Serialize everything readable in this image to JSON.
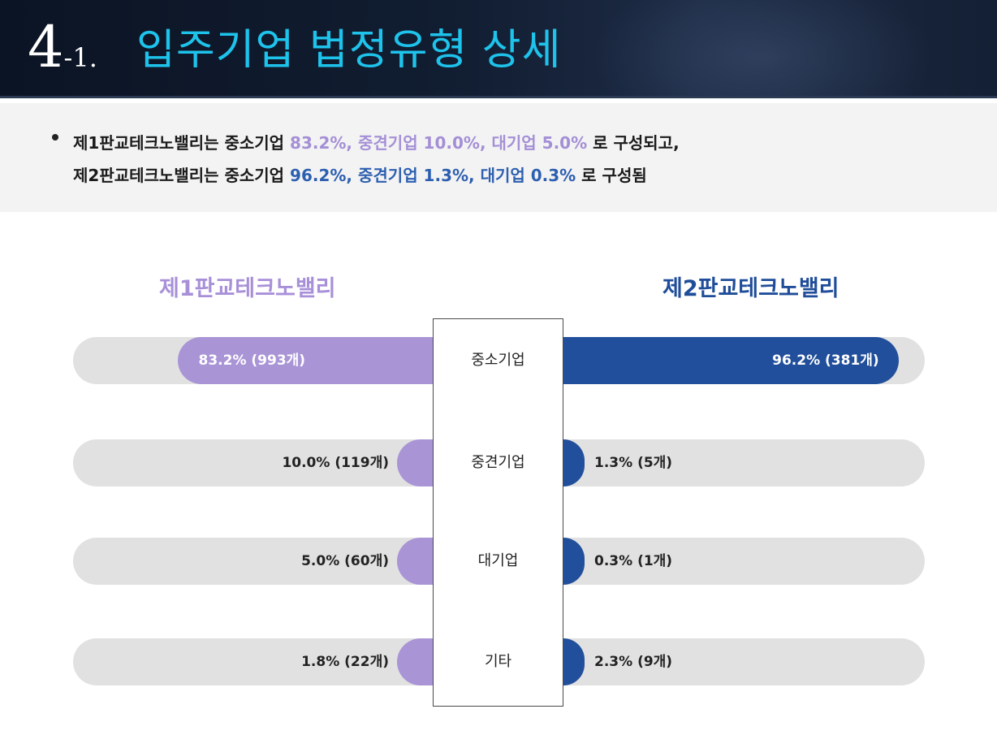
{
  "header": {
    "number": "4",
    "sub_number": "-1.",
    "title": "입주기업 법정유형 상세"
  },
  "summary": {
    "line1": {
      "prefix": "제1판교테크노밸리는 중소기업 ",
      "highlight": "83.2%, 중견기업 10.0%, 대기업 5.0%",
      "suffix": " 로 구성되고,"
    },
    "line2": {
      "prefix": "제2판교테크노밸리는 중소기업 ",
      "highlight": "96.2%, 중견기업 1.3%, 대기업 0.3%",
      "suffix": " 로 구성됨"
    }
  },
  "colors": {
    "left_series": "#a994d6",
    "right_series": "#214f9b",
    "track": "#e1e1e1",
    "title_accent": "#1ec3ec"
  },
  "chart_data": {
    "type": "bar",
    "orientation": "horizontal-diverging",
    "categories": [
      "중소기업",
      "중견기업",
      "대기업",
      "기타"
    ],
    "series": [
      {
        "name": "제1판교테크노밸리",
        "values": [
          83.2,
          10.0,
          5.0,
          1.8
        ],
        "labels": [
          "83.2% (993개)",
          "10.0% (119개)",
          "5.0% (60개)",
          "1.8% (22개)"
        ]
      },
      {
        "name": "제2판교테크노밸리",
        "values": [
          96.2,
          1.3,
          0.3,
          2.3
        ],
        "labels": [
          "96.2% (381개)",
          "1.3% (5개)",
          "0.3% (1개)",
          "2.3% (9개)"
        ]
      }
    ],
    "xlim": [
      0,
      100
    ]
  }
}
